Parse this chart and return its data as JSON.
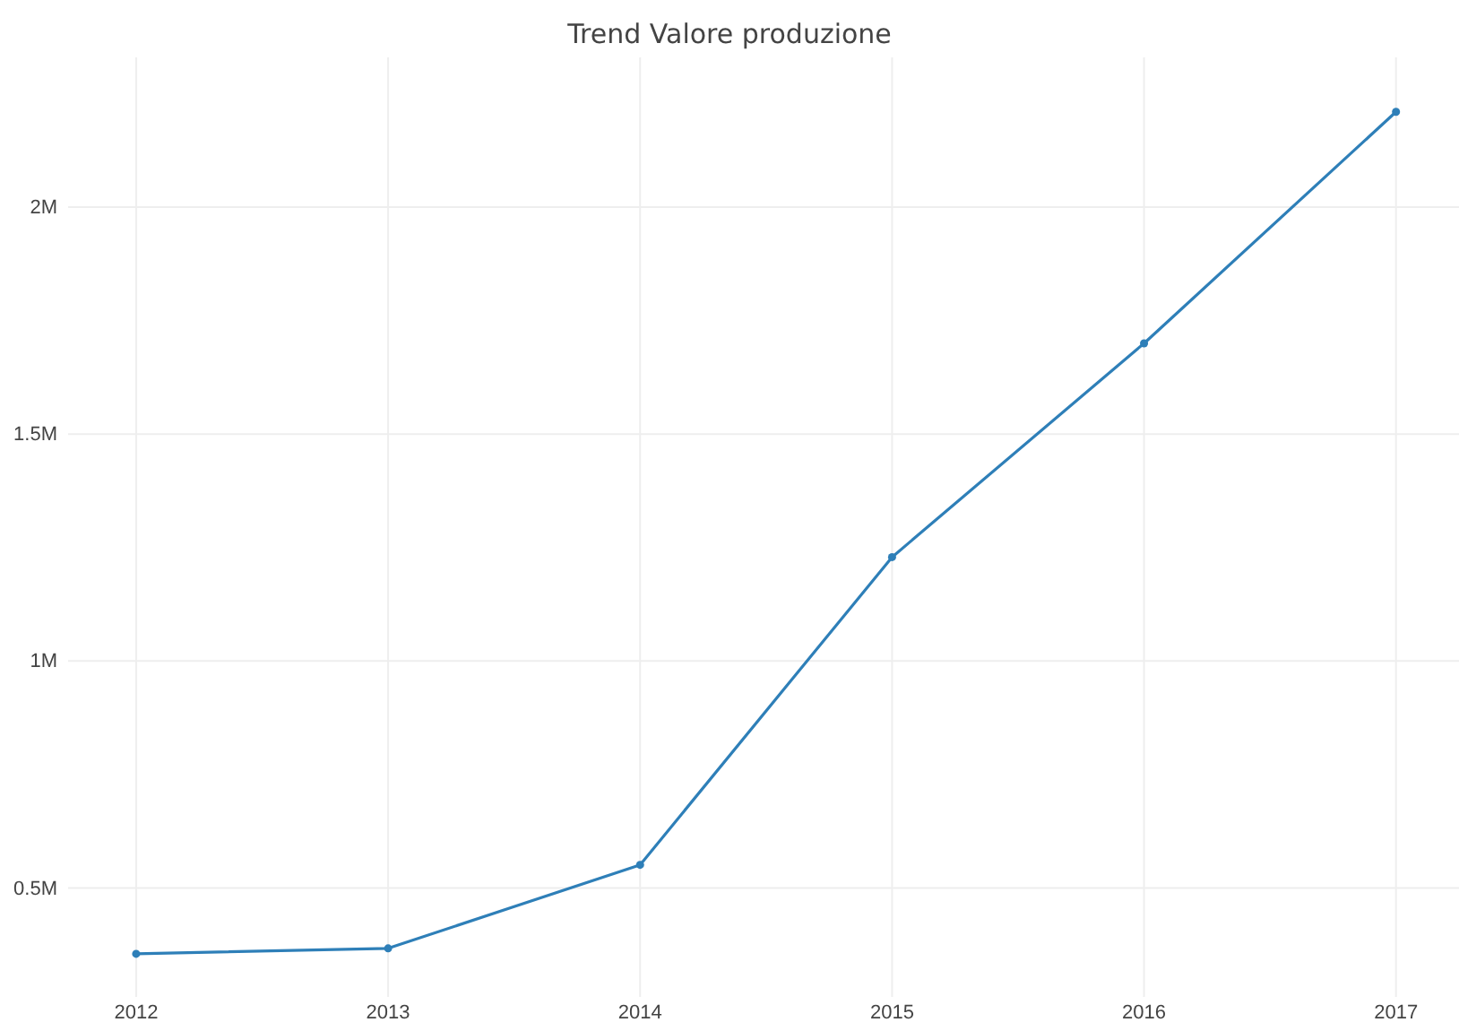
{
  "chart_data": {
    "type": "line",
    "title": "Trend Valore produzione",
    "x": [
      2012,
      2013,
      2014,
      2015,
      2016,
      2017
    ],
    "series": [
      {
        "color": "#2e7fb8",
        "values": [
          355000,
          367000,
          551000,
          1229000,
          1700000,
          2210000
        ]
      }
    ],
    "xlim": [
      2011.73,
      2017.25
    ],
    "xticks": [
      2012,
      2013,
      2014,
      2015,
      2016,
      2017
    ],
    "ylim": [
      260000,
      2330000
    ],
    "yticks": [
      {
        "value": 500000,
        "label": "0.5M"
      },
      {
        "value": 1000000,
        "label": "1M"
      },
      {
        "value": 1500000,
        "label": "1.5M"
      },
      {
        "value": 2000000,
        "label": "2M"
      }
    ],
    "grid": true,
    "marker": "circle",
    "line_style": "solid"
  }
}
